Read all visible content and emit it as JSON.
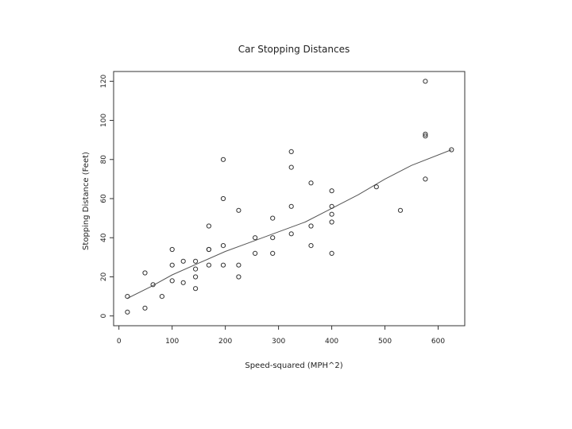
{
  "chart_data": {
    "type": "scatter",
    "title": "Car Stopping Distances",
    "xlabel": "Speed-squared (MPH^2)",
    "ylabel": "Stopping Distance (Feet)",
    "xlim": [
      -10,
      650
    ],
    "ylim": [
      -5,
      125
    ],
    "x_ticks": [
      0,
      100,
      200,
      300,
      400,
      500,
      600
    ],
    "y_ticks": [
      0,
      20,
      40,
      60,
      80,
      100,
      120
    ],
    "grid": false,
    "legend": "none",
    "points": [
      [
        16,
        2
      ],
      [
        16,
        10
      ],
      [
        49,
        4
      ],
      [
        49,
        22
      ],
      [
        64,
        16
      ],
      [
        81,
        10
      ],
      [
        100,
        18
      ],
      [
        100,
        26
      ],
      [
        100,
        34
      ],
      [
        121,
        17
      ],
      [
        121,
        28
      ],
      [
        144,
        14
      ],
      [
        144,
        20
      ],
      [
        144,
        24
      ],
      [
        144,
        28
      ],
      [
        169,
        26
      ],
      [
        169,
        34
      ],
      [
        169,
        34
      ],
      [
        169,
        46
      ],
      [
        196,
        26
      ],
      [
        196,
        36
      ],
      [
        196,
        60
      ],
      [
        196,
        80
      ],
      [
        225,
        20
      ],
      [
        225,
        26
      ],
      [
        225,
        54
      ],
      [
        256,
        32
      ],
      [
        256,
        40
      ],
      [
        289,
        32
      ],
      [
        289,
        40
      ],
      [
        289,
        50
      ],
      [
        324,
        42
      ],
      [
        324,
        56
      ],
      [
        324,
        76
      ],
      [
        324,
        84
      ],
      [
        361,
        36
      ],
      [
        361,
        46
      ],
      [
        361,
        68
      ],
      [
        400,
        32
      ],
      [
        400,
        48
      ],
      [
        400,
        52
      ],
      [
        400,
        56
      ],
      [
        400,
        64
      ],
      [
        484,
        66
      ],
      [
        529,
        54
      ],
      [
        576,
        70
      ],
      [
        576,
        92
      ],
      [
        576,
        93
      ],
      [
        576,
        120
      ],
      [
        625,
        85
      ]
    ],
    "fit_line": [
      [
        16,
        9
      ],
      [
        60,
        15
      ],
      [
        100,
        21
      ],
      [
        150,
        27
      ],
      [
        200,
        33
      ],
      [
        250,
        38
      ],
      [
        300,
        43
      ],
      [
        350,
        48
      ],
      [
        400,
        55
      ],
      [
        450,
        62
      ],
      [
        500,
        70
      ],
      [
        550,
        77
      ],
      [
        625,
        85
      ]
    ],
    "colors": {
      "points": "#333333",
      "line": "#555555",
      "frame": "#333333"
    }
  }
}
